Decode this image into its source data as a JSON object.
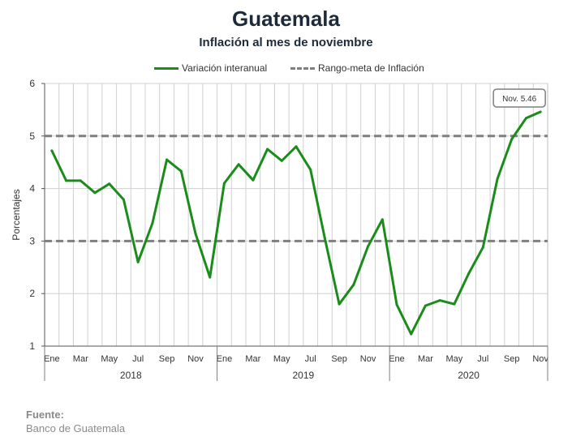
{
  "header": {
    "title": "Guatemala",
    "subtitle": "Inflación al mes de noviembre"
  },
  "legend": {
    "series_label": "Variación interanual",
    "band_label": "Rango-meta de Inflación"
  },
  "colors": {
    "series": "#1a8c1a",
    "band": "#7f7f7f",
    "grid": "#d0d0d0",
    "axis": "#555555"
  },
  "annotation": {
    "text": "Nov. 5.46"
  },
  "footer": {
    "source_heading": "Fuente:",
    "source_text": "Banco de Guatemala"
  },
  "chart_data": {
    "type": "line",
    "title": "Inflación al mes de noviembre",
    "xlabel": "",
    "ylabel": "Porcentajes",
    "ylim": [
      1,
      6
    ],
    "yticks": [
      1,
      2,
      3,
      4,
      5,
      6
    ],
    "grid": true,
    "legend_position": "top",
    "x": [
      "Ene 2018",
      "Feb 2018",
      "Mar 2018",
      "Abr 2018",
      "May 2018",
      "Jun 2018",
      "Jul 2018",
      "Ago 2018",
      "Sep 2018",
      "Oct 2018",
      "Nov 2018",
      "Dic 2018",
      "Ene 2019",
      "Feb 2019",
      "Mar 2019",
      "Abr 2019",
      "May 2019",
      "Jun 2019",
      "Jul 2019",
      "Ago 2019",
      "Sep 2019",
      "Oct 2019",
      "Nov 2019",
      "Dic 2019",
      "Ene 2020",
      "Feb 2020",
      "Mar 2020",
      "Abr 2020",
      "May 2020",
      "Jun 2020",
      "Jul 2020",
      "Ago 2020",
      "Sep 2020",
      "Oct 2020",
      "Nov 2020"
    ],
    "month_tick_labels": [
      "Ene",
      "",
      "Mar",
      "",
      "May",
      "",
      "Jul",
      "",
      "Sep",
      "",
      "Nov",
      "",
      "Ene",
      "",
      "Mar",
      "",
      "May",
      "",
      "Jul",
      "",
      "Sep",
      "",
      "Nov",
      "",
      "Ene",
      "",
      "Mar",
      "",
      "May",
      "",
      "Jul",
      "",
      "Sep",
      "",
      "Nov"
    ],
    "year_labels": [
      "2018",
      "2019",
      "2020"
    ],
    "series": [
      {
        "name": "Variación interanual",
        "values": [
          4.72,
          4.15,
          4.15,
          3.92,
          4.09,
          3.79,
          2.6,
          3.34,
          4.55,
          4.33,
          3.14,
          2.31,
          4.1,
          4.46,
          4.16,
          4.75,
          4.53,
          4.8,
          4.36,
          3.05,
          1.8,
          2.17,
          2.9,
          3.41,
          1.79,
          1.23,
          1.77,
          1.87,
          1.8,
          2.38,
          2.88,
          4.18,
          4.94,
          5.34,
          5.46
        ]
      }
    ],
    "reference_lines": [
      {
        "name": "Rango-meta de Inflación",
        "y": 5
      },
      {
        "name": "Rango-meta de Inflación",
        "y": 3
      }
    ]
  }
}
